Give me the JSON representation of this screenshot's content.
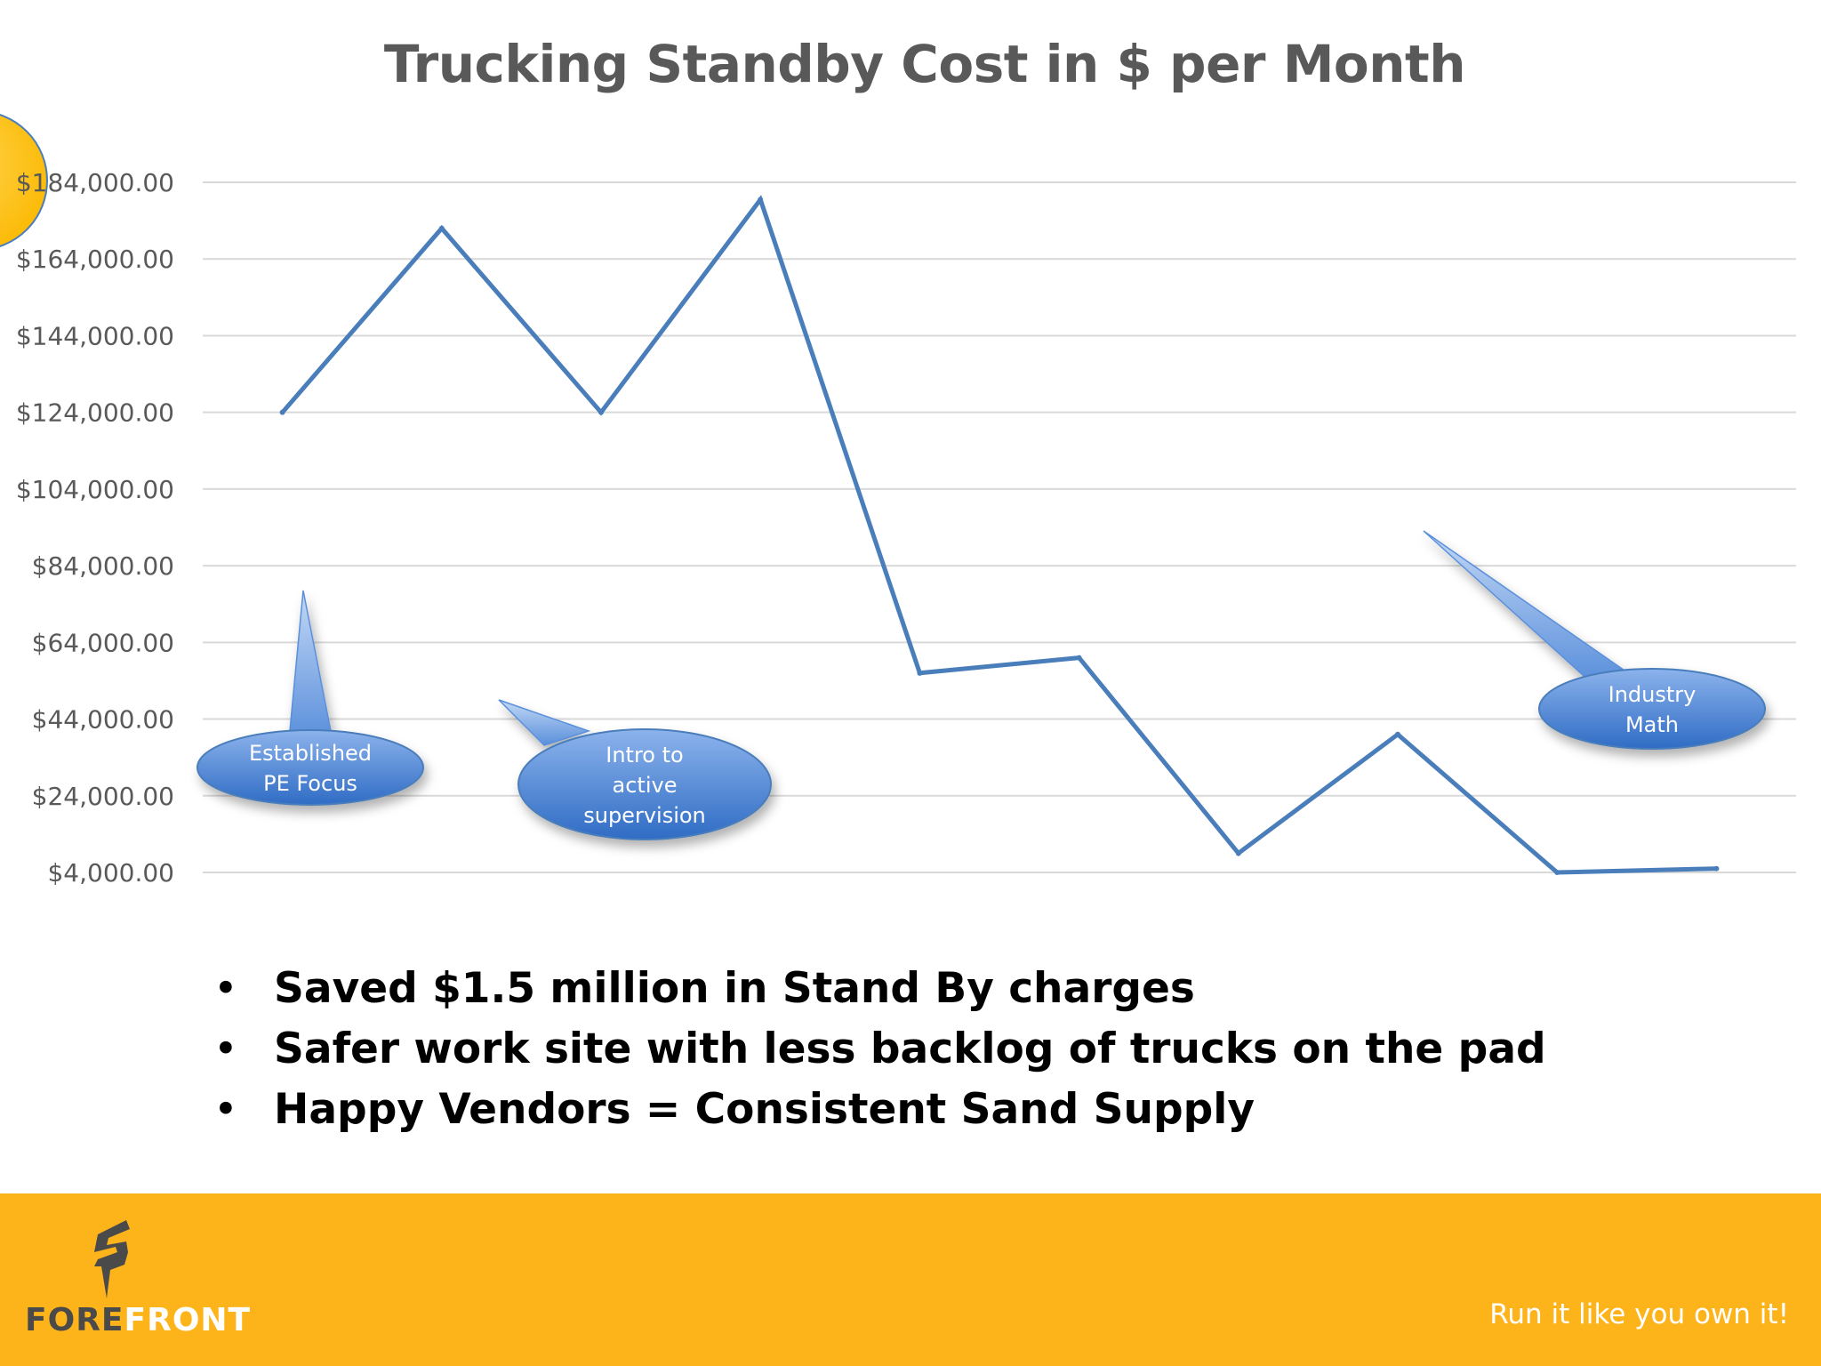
{
  "slide": {
    "title": "Trucking Standby Cost in $ per Month",
    "bullets": [
      "Saved $1.5 million in Stand By charges",
      "Safer work site with less backlog of trucks on the pad",
      "Happy Vendors = Consistent Sand Supply"
    ]
  },
  "chart_data": {
    "type": "line",
    "title": "Trucking Standby Cost in $ per Month",
    "xlabel": "",
    "ylabel": "",
    "x": [
      1,
      2,
      3,
      4,
      5,
      6,
      7,
      8,
      9,
      10
    ],
    "series": [
      {
        "values": [
          124000,
          172000,
          124000,
          179500,
          56000,
          60000,
          9000,
          40000,
          4000,
          5000
        ]
      }
    ],
    "y_ticks": [
      "$4,000.00",
      "$24,000.00",
      "$44,000.00",
      "$64,000.00",
      "$84,000.00",
      "$104,000.00",
      "$124,000.00",
      "$144,000.00",
      "$164,000.00",
      "$184,000.00"
    ],
    "y_tick_values": [
      4000,
      24000,
      44000,
      64000,
      84000,
      104000,
      124000,
      144000,
      164000,
      184000
    ],
    "ylim": [
      4000,
      184000
    ],
    "grid": true,
    "line_color": "#4a7ebb",
    "annotations": [
      {
        "text": [
          "Established",
          "PE Focus"
        ]
      },
      {
        "text": [
          "Intro to",
          "active",
          "supervision"
        ]
      },
      {
        "text": [
          "Industry",
          "Math"
        ]
      }
    ]
  },
  "footer": {
    "logo_text_dark": "FORE",
    "logo_text_light": "FRONT",
    "tagline": "Run it like you own it!",
    "background_color": "#fdb41a"
  }
}
